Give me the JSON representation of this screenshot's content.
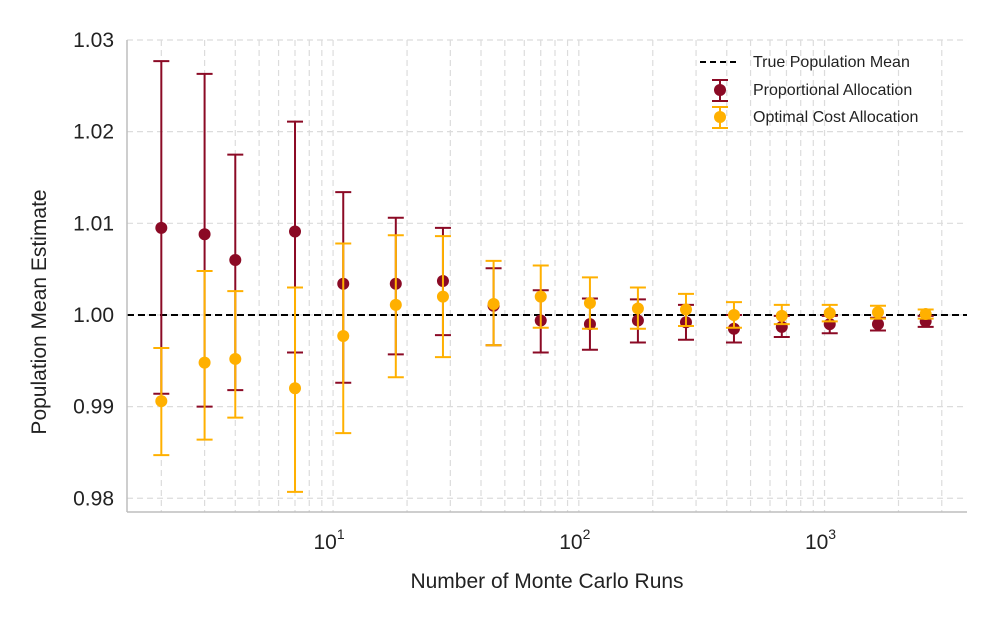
{
  "chart_data": {
    "type": "scatter",
    "x_scale": "log",
    "xlabel": "Number of Monte Carlo Runs",
    "ylabel": "Population Mean Estimate",
    "xlim": [
      1.45,
      3800
    ],
    "ylim": [
      0.9785,
      1.03
    ],
    "x_ticks": [
      {
        "base": "10",
        "exp": "1"
      },
      {
        "base": "10",
        "exp": "2"
      },
      {
        "base": "10",
        "exp": "3"
      }
    ],
    "y_ticks": [
      "0.98",
      "0.99",
      "1.00",
      "1.01",
      "1.02",
      "1.03"
    ],
    "grid": true,
    "reference_line": {
      "name": "True Population Mean",
      "y": 1.0,
      "style": "dashed",
      "color": "#000000"
    },
    "legend_position": "top-right",
    "series": [
      {
        "name": "Proportional Allocation",
        "color": "#8b0a25",
        "points": [
          {
            "x": 2,
            "y": 1.0095,
            "lo": 0.9914,
            "hi": 1.0277
          },
          {
            "x": 3,
            "y": 1.0088,
            "lo": 0.99,
            "hi": 1.0263
          },
          {
            "x": 4,
            "y": 1.006,
            "lo": 0.9918,
            "hi": 1.0175
          },
          {
            "x": 7,
            "y": 1.0091,
            "lo": 0.9959,
            "hi": 1.0211
          },
          {
            "x": 11,
            "y": 1.0034,
            "lo": 0.9926,
            "hi": 1.0134
          },
          {
            "x": 18,
            "y": 1.0034,
            "lo": 0.9957,
            "hi": 1.0106
          },
          {
            "x": 28,
            "y": 1.0037,
            "lo": 0.9978,
            "hi": 1.0095
          },
          {
            "x": 45,
            "y": 1.001,
            "lo": 0.9967,
            "hi": 1.0051
          },
          {
            "x": 70,
            "y": 0.9994,
            "lo": 0.9959,
            "hi": 1.0027
          },
          {
            "x": 111,
            "y": 0.999,
            "lo": 0.9962,
            "hi": 1.0018
          },
          {
            "x": 174,
            "y": 0.9994,
            "lo": 0.997,
            "hi": 1.0017
          },
          {
            "x": 273,
            "y": 0.9992,
            "lo": 0.9973,
            "hi": 1.0011
          },
          {
            "x": 428,
            "y": 0.9985,
            "lo": 0.997,
            "hi": 1.0
          },
          {
            "x": 670,
            "y": 0.9987,
            "lo": 0.9976,
            "hi": 0.9999
          },
          {
            "x": 1050,
            "y": 0.999,
            "lo": 0.998,
            "hi": 0.9999
          },
          {
            "x": 1650,
            "y": 0.999,
            "lo": 0.9983,
            "hi": 0.9997
          },
          {
            "x": 2580,
            "y": 0.9993,
            "lo": 0.9987,
            "hi": 0.9999
          }
        ]
      },
      {
        "name": "Optimal Cost Allocation",
        "color": "#ffb000",
        "points": [
          {
            "x": 2,
            "y": 0.9906,
            "lo": 0.9847,
            "hi": 0.9964
          },
          {
            "x": 3,
            "y": 0.9948,
            "lo": 0.9864,
            "hi": 1.0048
          },
          {
            "x": 4,
            "y": 0.9952,
            "lo": 0.9888,
            "hi": 1.0026
          },
          {
            "x": 7,
            "y": 0.992,
            "lo": 0.9807,
            "hi": 1.003
          },
          {
            "x": 11,
            "y": 0.9977,
            "lo": 0.9871,
            "hi": 1.0078
          },
          {
            "x": 18,
            "y": 1.0011,
            "lo": 0.9932,
            "hi": 1.0087
          },
          {
            "x": 28,
            "y": 1.002,
            "lo": 0.9954,
            "hi": 1.0086
          },
          {
            "x": 45,
            "y": 1.0012,
            "lo": 0.9967,
            "hi": 1.0059
          },
          {
            "x": 70,
            "y": 1.002,
            "lo": 0.9986,
            "hi": 1.0054
          },
          {
            "x": 111,
            "y": 1.0013,
            "lo": 0.9985,
            "hi": 1.0041
          },
          {
            "x": 174,
            "y": 1.0007,
            "lo": 0.9985,
            "hi": 1.003
          },
          {
            "x": 273,
            "y": 1.0006,
            "lo": 0.9988,
            "hi": 1.0023
          },
          {
            "x": 428,
            "y": 1.0,
            "lo": 0.9986,
            "hi": 1.0014
          },
          {
            "x": 670,
            "y": 0.9999,
            "lo": 0.999,
            "hi": 1.0011
          },
          {
            "x": 1050,
            "y": 1.0002,
            "lo": 0.9993,
            "hi": 1.0011
          },
          {
            "x": 1650,
            "y": 1.0003,
            "lo": 0.9996,
            "hi": 1.001
          },
          {
            "x": 2580,
            "y": 1.0001,
            "lo": 0.9996,
            "hi": 1.0006
          }
        ]
      }
    ]
  }
}
